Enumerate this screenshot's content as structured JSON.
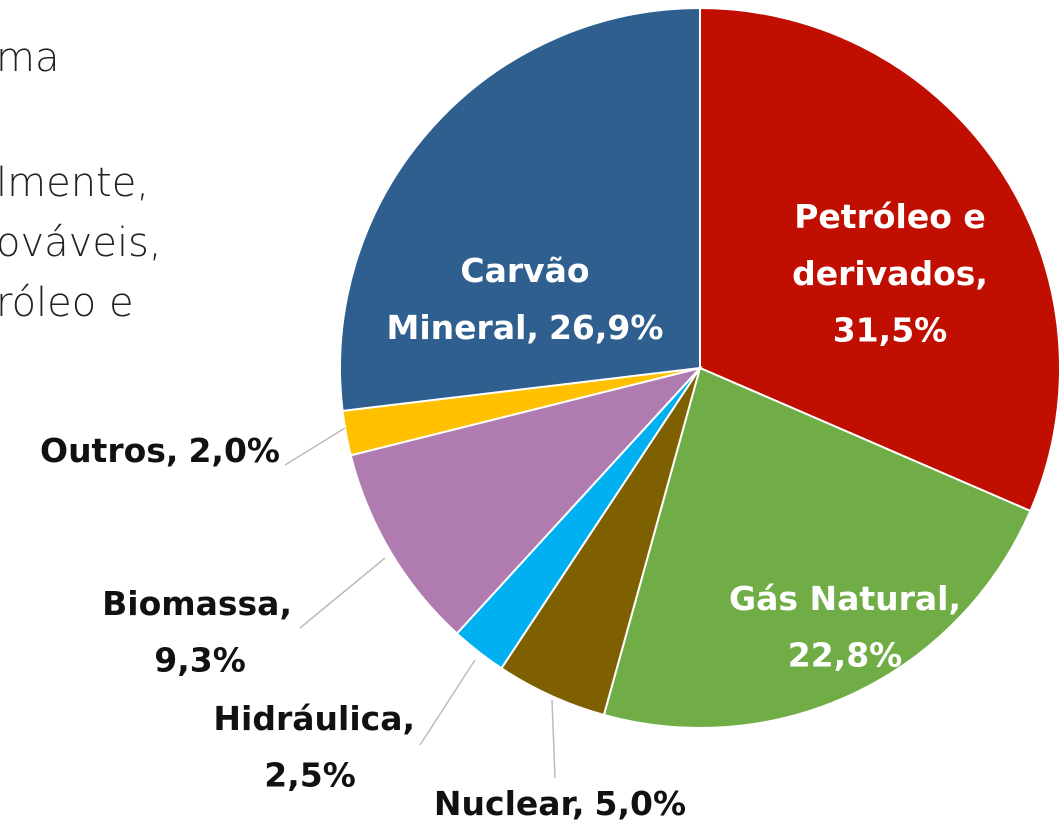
{
  "background_text": [
    "ma",
    "lmente,",
    "ováveis,",
    "róleo e"
  ],
  "chart_data": {
    "type": "pie",
    "categories": [
      [
        "Petróleo e",
        "derivados,"
      ],
      [
        "Gás Natural,"
      ],
      [
        "Nuclear,"
      ],
      [
        "Hidráulica,"
      ],
      [
        "Biomassa,"
      ],
      [
        "Outros,"
      ],
      [
        "Carvão",
        "Mineral,"
      ]
    ],
    "values": [
      31.5,
      22.8,
      5.0,
      2.5,
      9.3,
      2.0,
      26.9
    ],
    "value_labels": [
      "31,5%",
      "22,8%",
      "5,0%",
      "2,5%",
      "9,3%",
      "2,0%",
      "26,9%"
    ],
    "colors": [
      "#c00f00",
      "#70ad47",
      "#7f6000",
      "#00b0f0",
      "#b07cb0",
      "#ffc000",
      "#2e5f8e"
    ]
  }
}
